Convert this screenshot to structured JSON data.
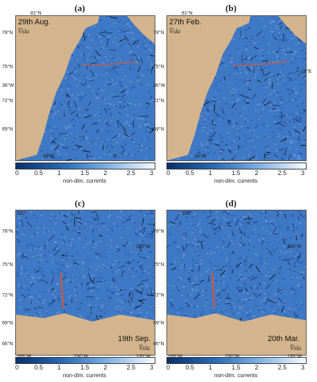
{
  "colors": {
    "ocean_dark": "#1b4f9c",
    "ocean_mid": "#3f78c4",
    "ocean_light": "#7fa8dd",
    "land": "#d4b48c",
    "track": "#e0562a",
    "cbar_start": "#08306b",
    "cbar_end": "#f7fbff"
  },
  "panels": [
    {
      "label": "(a)",
      "date": "29th Aug.",
      "subscript": "V̅sla",
      "lat_ticks": [
        "78°N",
        "75°N",
        "72°N",
        "69°N"
      ],
      "lon_ticks": [
        "36°W",
        "18°W",
        "0°",
        "81°N"
      ],
      "extra_ticks": []
    },
    {
      "label": "(b)",
      "date": "27th Feb.",
      "subscript": "V̅sla",
      "lat_ticks": [
        "78°N",
        "75°N",
        "72°N",
        "69°N"
      ],
      "lon_ticks": [
        "36°W",
        "18°W",
        "0°",
        "81°N",
        "18°E"
      ],
      "extra_ticks": []
    },
    {
      "label": "(c)",
      "date": "19th Sep.",
      "subscript": "V̅sla",
      "lat_ticks": [
        "78°N",
        "75°N",
        "72°N",
        "69°N",
        "66°N"
      ],
      "lon_ticks": [
        "165°W",
        "150°W",
        "135°W",
        "180°",
        "120°W"
      ],
      "extra_ticks": []
    },
    {
      "label": "(d)",
      "date": "20th Mar.",
      "subscript": "V̅sla",
      "lat_ticks": [
        "78°N",
        "75°N",
        "72°N",
        "69°N",
        "66°N"
      ],
      "lon_ticks": [
        "165°W",
        "150°W",
        "135°W",
        "180°",
        "120°W"
      ],
      "extra_ticks": []
    }
  ],
  "colorbar": {
    "ticks": [
      "0",
      "0.5",
      "1",
      "1.5",
      "2",
      "2.5",
      "3"
    ],
    "label": "non-dim. currents"
  }
}
